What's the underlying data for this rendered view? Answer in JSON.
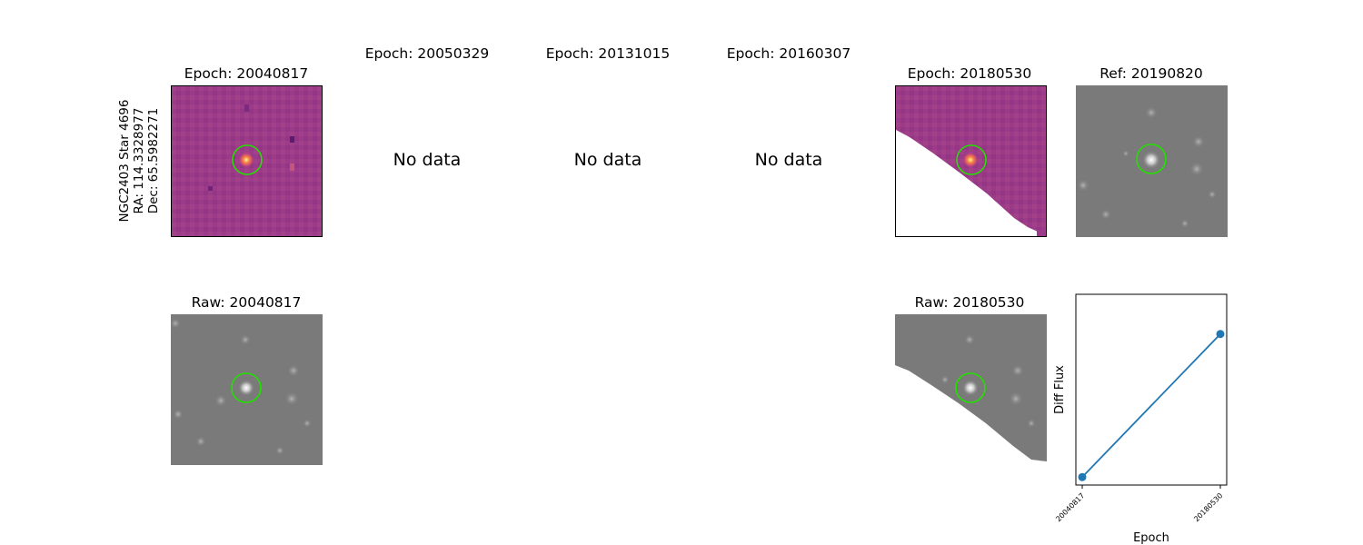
{
  "star_info": {
    "name": "NGC2403 Star 4696",
    "ra": "RA: 114.3328977",
    "dec": "Dec: 65.5982271"
  },
  "epochs": [
    {
      "title": "Epoch: 20040817",
      "has_data": true,
      "colormap": "magma"
    },
    {
      "title": "Epoch: 20050329",
      "has_data": false,
      "no_data_text": "No data"
    },
    {
      "title": "Epoch: 20131015",
      "has_data": false,
      "no_data_text": "No data"
    },
    {
      "title": "Epoch: 20160307",
      "has_data": false,
      "no_data_text": "No data"
    },
    {
      "title": "Epoch: 20180530",
      "has_data": true,
      "colormap": "magma",
      "partial_coverage": true
    }
  ],
  "reference": {
    "title": "Ref: 20190820",
    "colormap": "gray"
  },
  "raw": [
    {
      "title": "Raw: 20040817",
      "colormap": "gray"
    },
    {
      "title": "Raw: 20180530",
      "colormap": "gray",
      "partial_coverage": true
    }
  ],
  "marker": {
    "shape": "circle",
    "color": "#22e000"
  },
  "colors": {
    "diff_background": "#9c3b89",
    "raw_background": "#7a7a7a",
    "line": "#1f77b4"
  },
  "chart_data": {
    "type": "line",
    "title": "",
    "xlabel": "Epoch",
    "ylabel": "Diff Flux",
    "categories": [
      "20040817",
      "20180530"
    ],
    "series": [
      {
        "values": [
          0.05,
          0.95
        ]
      }
    ],
    "ylim": [
      0,
      1.2
    ],
    "yticks_shown": false,
    "grid": false
  }
}
